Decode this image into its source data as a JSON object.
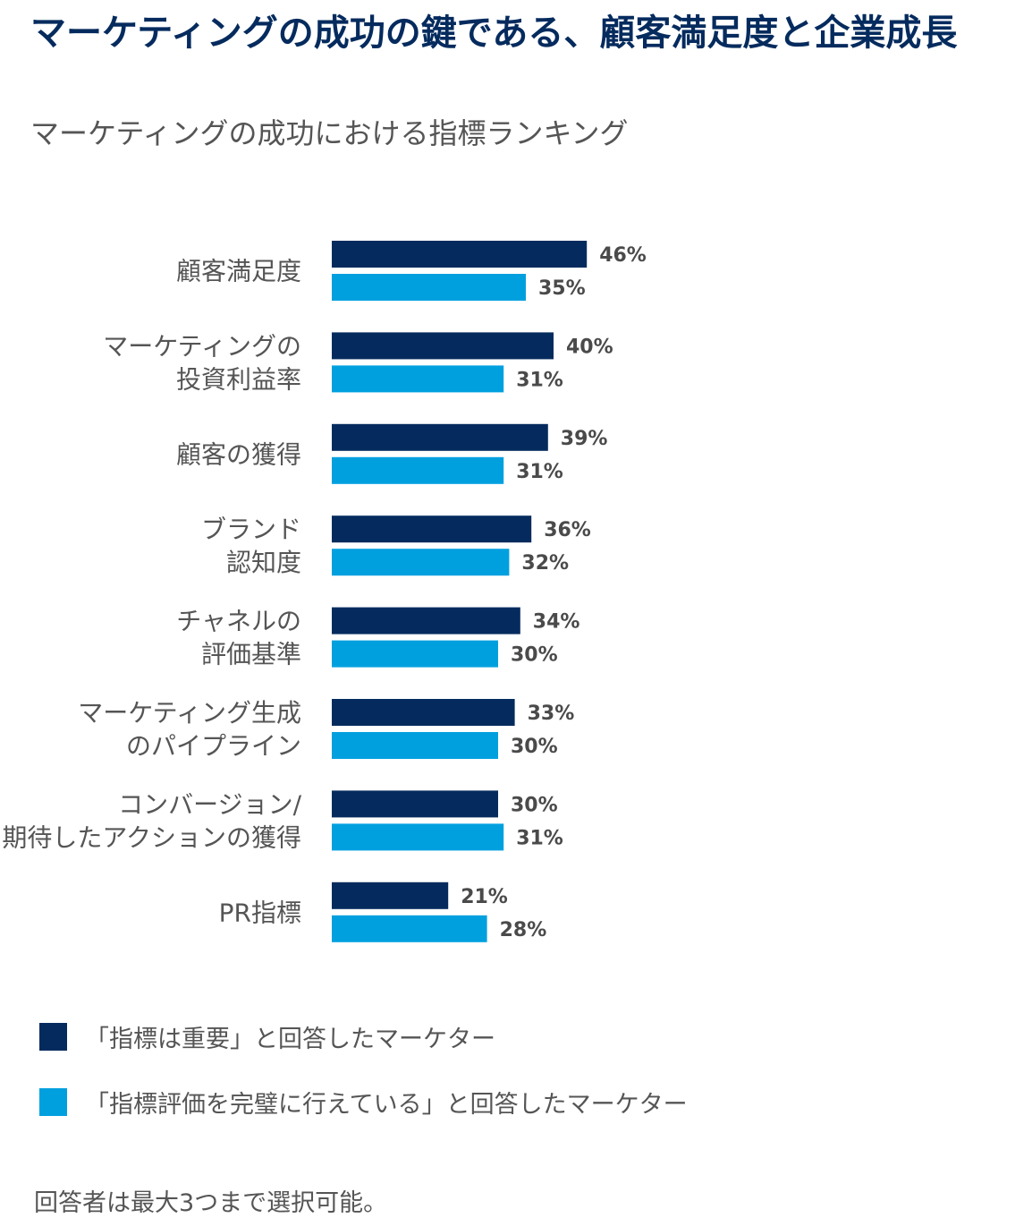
{
  "header": {
    "title": "マーケティングの成功の鍵である、顧客満足度と企業成長",
    "subtitle": "マーケティングの成功における指標ランキング"
  },
  "colors": {
    "series1": "#052b5e",
    "series2": "#00a0df",
    "text": "#555555"
  },
  "chart_data": {
    "type": "bar",
    "orientation": "horizontal",
    "title": "マーケティングの成功における指標ランキング",
    "categories": [
      [
        "顧客満足度"
      ],
      [
        "マーケティングの",
        "投資利益率"
      ],
      [
        "顧客の獲得"
      ],
      [
        "ブランド",
        "認知度"
      ],
      [
        "チャネルの",
        "評価基準"
      ],
      [
        "マーケティング生成",
        "のパイプライン"
      ],
      [
        "コンバージョン/",
        "期待したアクションの獲得"
      ],
      [
        "PR指標"
      ]
    ],
    "series": [
      {
        "name": "「指標は重要」と回答したマーケター",
        "values": [
          46,
          40,
          39,
          36,
          34,
          33,
          30,
          21
        ]
      },
      {
        "name": "「指標評価を完璧に行えている」と回答したマーケター",
        "values": [
          35,
          31,
          31,
          32,
          30,
          30,
          31,
          28
        ]
      }
    ],
    "value_suffix": "%",
    "xlim": [
      0,
      100
    ],
    "grid": false,
    "legend_position": "bottom-left"
  },
  "legend": {
    "items": [
      "「指標は重要」と回答したマーケター",
      "「指標評価を完璧に行えている」と回答したマーケター"
    ]
  },
  "footnote": "回答者は最大3つまで選択可能。"
}
